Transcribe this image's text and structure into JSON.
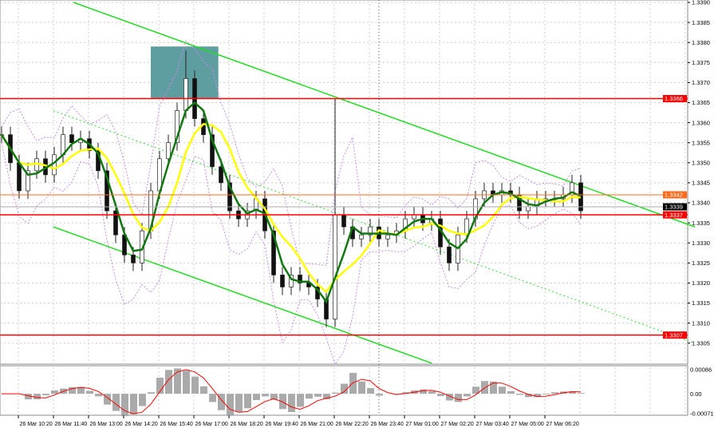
{
  "chart_data": {
    "type": "candlestick",
    "title": "",
    "y_axis": {
      "range": [
        1.3303,
        1.3391
      ],
      "ticks": [
        "1.3390",
        "1.3385",
        "1.3380",
        "1.3375",
        "1.3370",
        "1.3365",
        "1.3360",
        "1.3355",
        "1.3350",
        "1.3345",
        "1.3340",
        "1.3335",
        "1.3330",
        "1.3325",
        "1.3320",
        "1.3315",
        "1.3310",
        "1.3305"
      ]
    },
    "x_axis": {
      "tick_labels": [
        "09:00",
        "26 Mar 10:20",
        "26 Mar 11:40",
        "26 Mar 13:00",
        "26 Mar 14:20",
        "26 Mar 15:40",
        "26 Mar 17:00",
        "26 Mar 18:20",
        "26 Mar 19:40",
        "26 Mar 21:00",
        "26 Mar 22:20",
        "26 Mar 23:40",
        "27 Mar 01:00",
        "27 Mar 02:20",
        "27 Mar 03:40",
        "27 Mar 05:00",
        "27 Mar 06:20"
      ]
    },
    "grid": true,
    "closes": [
      1.3357,
      1.335,
      1.3343,
      1.3348,
      1.3351,
      1.3347,
      1.3352,
      1.3357,
      1.3355,
      1.3356,
      1.3353,
      1.3348,
      1.3338,
      1.3332,
      1.3327,
      1.3325,
      1.3333,
      1.3343,
      1.3351,
      1.3355,
      1.3363,
      1.3371,
      1.3361,
      1.3357,
      1.3349,
      1.3345,
      1.3338,
      1.3336,
      1.3338,
      1.3341,
      1.3333,
      1.3322,
      1.3319,
      1.3322,
      1.332,
      1.3319,
      1.3316,
      1.3311,
      1.3337,
      1.3334,
      1.3331,
      1.3332,
      1.3334,
      1.3331,
      1.3332,
      1.3333,
      1.3336,
      1.3337,
      1.3335,
      1.3336,
      1.3329,
      1.3325,
      1.3332,
      1.3336,
      1.3341,
      1.3343,
      1.3342,
      1.3343,
      1.3342,
      1.3338,
      1.3339,
      1.3341,
      1.3341,
      1.3341,
      1.3342,
      1.3345,
      1.3338
    ],
    "spike": {
      "index": 38,
      "high": 1.3366,
      "low": 1.3309
    },
    "peak": {
      "index": 21,
      "high": 1.3378
    },
    "levels": [
      {
        "price": "1.3366",
        "color": "#ff0000"
      },
      {
        "price": "1.3342",
        "color": "#ff6a1a"
      },
      {
        "price": "1.3339",
        "color": "#000000"
      },
      {
        "price": "1.3337",
        "color": "#ff0000"
      },
      {
        "price": "1.3307",
        "color": "#ff0000"
      }
    ],
    "trendlines": [
      {
        "from": [
          8.2,
          1.339
        ],
        "to": [
          79,
          1.3334
        ],
        "color": "#22dd22",
        "style": "solid"
      },
      {
        "from": [
          5.9,
          1.3334
        ],
        "to": [
          49,
          1.33
        ],
        "color": "#22dd22",
        "style": "solid"
      },
      {
        "from": [
          5.9,
          1.3363
        ],
        "to": [
          79,
          1.3305
        ],
        "color": "#33dd33",
        "style": "dotted"
      }
    ],
    "zone": {
      "from": 17,
      "to": 24.7,
      "top": 1.3379,
      "bottom": 1.3366,
      "color": "#5f9ea0"
    },
    "ma_colors": {
      "fast": "#117711",
      "slow": "#ffff00",
      "bands": "#cc88ee"
    },
    "macd": {
      "ticks": [
        "0.00086",
        "0.00",
        "-0.00071"
      ],
      "range": [
        -0.00071,
        0.00086
      ],
      "signal_color": "#ff0000",
      "hist_color": "#aaaaaa"
    }
  }
}
